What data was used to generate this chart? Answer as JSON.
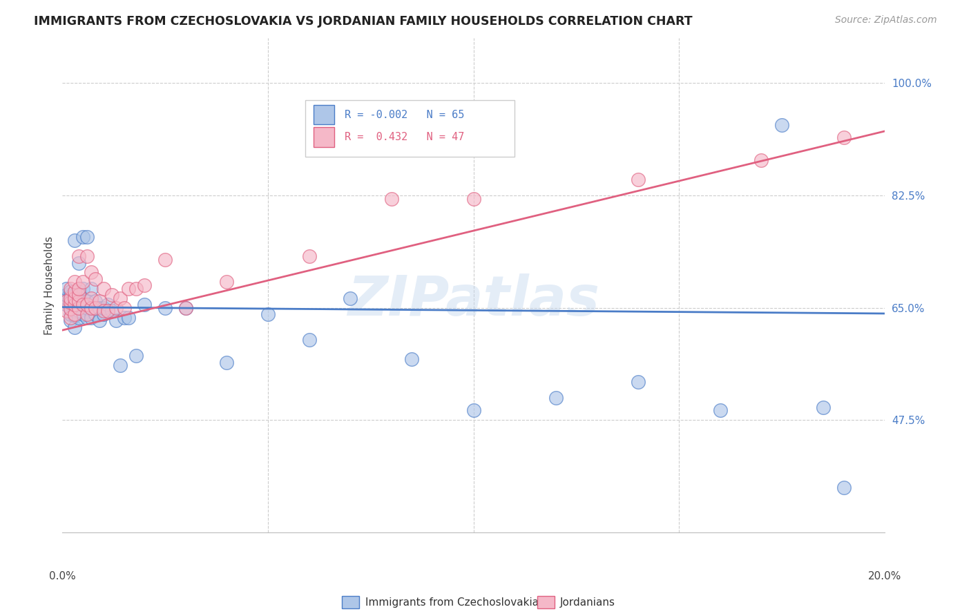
{
  "title": "IMMIGRANTS FROM CZECHOSLOVAKIA VS JORDANIAN FAMILY HOUSEHOLDS CORRELATION CHART",
  "source": "Source: ZipAtlas.com",
  "ylabel": "Family Households",
  "yticks": [
    0.475,
    0.65,
    0.825,
    1.0
  ],
  "ytick_labels": [
    "47.5%",
    "65.0%",
    "82.5%",
    "100.0%"
  ],
  "xmin": 0.0,
  "xmax": 0.2,
  "ymin": 0.3,
  "ymax": 1.07,
  "legend_blue_R": "R = -0.002",
  "legend_blue_N": "N = 65",
  "legend_pink_R": "R =  0.432",
  "legend_pink_N": "N = 47",
  "legend_label_blue": "Immigrants from Czechoslovakia",
  "legend_label_pink": "Jordanians",
  "blue_fill": "#aec6e8",
  "pink_fill": "#f5b8c8",
  "blue_edge": "#4a7cc7",
  "pink_edge": "#e06080",
  "blue_line_color": "#4a7cc7",
  "pink_line_color": "#e06080",
  "watermark": "ZIPatlas",
  "blue_slope": -0.05,
  "blue_intercept": 0.651,
  "pink_slope": 1.55,
  "pink_intercept": 0.615,
  "blue_points_x": [
    0.001,
    0.001,
    0.001,
    0.001,
    0.001,
    0.002,
    0.002,
    0.002,
    0.002,
    0.002,
    0.002,
    0.002,
    0.003,
    0.003,
    0.003,
    0.003,
    0.003,
    0.003,
    0.003,
    0.004,
    0.004,
    0.004,
    0.004,
    0.004,
    0.004,
    0.005,
    0.005,
    0.005,
    0.005,
    0.005,
    0.006,
    0.006,
    0.006,
    0.006,
    0.007,
    0.007,
    0.007,
    0.008,
    0.008,
    0.009,
    0.009,
    0.01,
    0.01,
    0.011,
    0.012,
    0.013,
    0.014,
    0.015,
    0.016,
    0.018,
    0.02,
    0.025,
    0.03,
    0.04,
    0.05,
    0.06,
    0.07,
    0.085,
    0.1,
    0.12,
    0.14,
    0.16,
    0.175,
    0.185,
    0.19
  ],
  "blue_points_y": [
    0.655,
    0.66,
    0.665,
    0.67,
    0.68,
    0.63,
    0.64,
    0.65,
    0.655,
    0.66,
    0.668,
    0.675,
    0.62,
    0.638,
    0.645,
    0.652,
    0.66,
    0.67,
    0.755,
    0.635,
    0.645,
    0.658,
    0.665,
    0.675,
    0.72,
    0.64,
    0.655,
    0.665,
    0.68,
    0.76,
    0.635,
    0.65,
    0.66,
    0.76,
    0.635,
    0.65,
    0.68,
    0.64,
    0.66,
    0.63,
    0.65,
    0.64,
    0.65,
    0.655,
    0.645,
    0.63,
    0.56,
    0.635,
    0.635,
    0.575,
    0.655,
    0.65,
    0.65,
    0.565,
    0.64,
    0.6,
    0.665,
    0.57,
    0.49,
    0.51,
    0.535,
    0.49,
    0.935,
    0.495,
    0.37
  ],
  "pink_points_x": [
    0.001,
    0.001,
    0.002,
    0.002,
    0.002,
    0.002,
    0.002,
    0.003,
    0.003,
    0.003,
    0.003,
    0.003,
    0.004,
    0.004,
    0.004,
    0.004,
    0.004,
    0.005,
    0.005,
    0.006,
    0.006,
    0.006,
    0.007,
    0.007,
    0.007,
    0.008,
    0.008,
    0.009,
    0.01,
    0.01,
    0.011,
    0.012,
    0.013,
    0.014,
    0.015,
    0.016,
    0.018,
    0.02,
    0.025,
    0.03,
    0.04,
    0.06,
    0.08,
    0.1,
    0.14,
    0.17,
    0.19
  ],
  "pink_points_y": [
    0.645,
    0.66,
    0.635,
    0.648,
    0.658,
    0.665,
    0.68,
    0.64,
    0.655,
    0.665,
    0.675,
    0.69,
    0.65,
    0.66,
    0.67,
    0.68,
    0.73,
    0.655,
    0.69,
    0.64,
    0.655,
    0.73,
    0.65,
    0.665,
    0.705,
    0.65,
    0.695,
    0.66,
    0.645,
    0.68,
    0.645,
    0.67,
    0.65,
    0.665,
    0.65,
    0.68,
    0.68,
    0.685,
    0.725,
    0.65,
    0.69,
    0.73,
    0.82,
    0.82,
    0.85,
    0.88,
    0.915
  ]
}
